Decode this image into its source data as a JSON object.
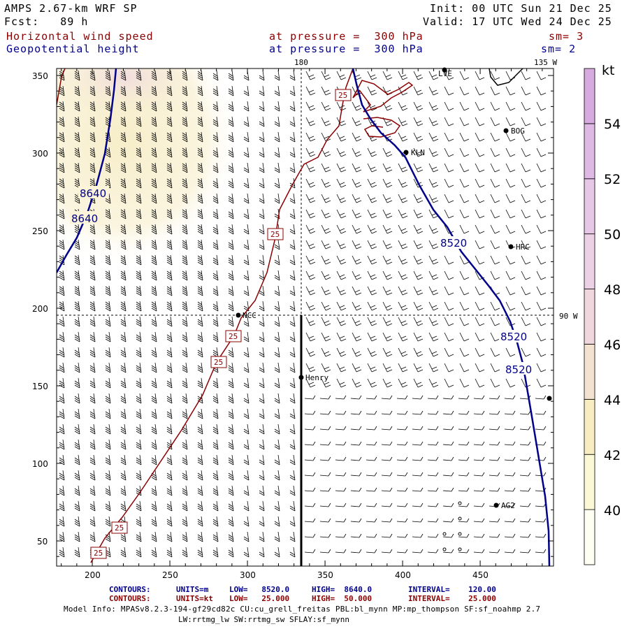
{
  "header": {
    "model": "AMPS 2.67-km WRF SP",
    "fcst": "Fcst:   89 h",
    "init": "Init: 00 UTC Sun 21 Dec 25",
    "valid": "Valid: 17 UTC Wed 24 Dec 25",
    "field1": "Horizontal wind speed",
    "field1_level": "at pressure =  300 hPa",
    "field1_sm": "sm= 3",
    "field2": "Geopotential height",
    "field2_level": "at pressure =  300 hPa",
    "field2_sm": "sm= 2"
  },
  "map": {
    "lon_label_top": "180",
    "lon_label_topright": "135 W",
    "lon_label_right": "90 W",
    "x_ticks": [
      "200",
      "250",
      "300",
      "350",
      "400",
      "450"
    ],
    "y_ticks": [
      "50",
      "100",
      "150",
      "200",
      "250",
      "300",
      "350"
    ],
    "stations": [
      {
        "name": "LVE"
      },
      {
        "name": "BOG"
      },
      {
        "name": "KLN"
      },
      {
        "name": "HRC"
      },
      {
        "name": "NCC"
      },
      {
        "name": "Henry"
      },
      {
        "name": "AG2"
      }
    ],
    "height_labels": [
      "8640",
      "8640",
      "8520",
      "8520",
      "8520"
    ],
    "speed_labels": [
      "25",
      "25",
      "25",
      "25",
      "25",
      "25"
    ]
  },
  "legend": {
    "unit": "kt",
    "levels": [
      "40",
      "42",
      "44",
      "46",
      "48",
      "50",
      "52",
      "54"
    ],
    "colors": [
      "#fefef2",
      "#fbf8d5",
      "#f7edc0",
      "#f3e2cf",
      "#f0d6dd",
      "#ecd0e3",
      "#e6c7e6",
      "#deb9e4",
      "#d8abe0"
    ]
  },
  "footer": {
    "c1_label": "CONTOURS:",
    "c1_units": "UNITS=m",
    "c1_low": "LOW=   8520.0",
    "c1_high": "HIGH=  8640.0",
    "c1_interval": "INTERVAL=    120.00",
    "c2_label": "CONTOURS:",
    "c2_units": "UNITS=kt",
    "c2_low": "LOW=   25.000",
    "c2_high": "HIGH=  50.000",
    "c2_interval": "INTERVAL=    25.000",
    "info1": "Model Info: MPASv8.2.3-194-gf29cd82c CU:cu_grell_freitas PBL:bl_mynn MP:mp_thompson SF:sf_noahmp 2.7",
    "info2": "LW:rrtmg_lw SW:rrtmg_sw SFLAY:sf_mynn"
  }
}
